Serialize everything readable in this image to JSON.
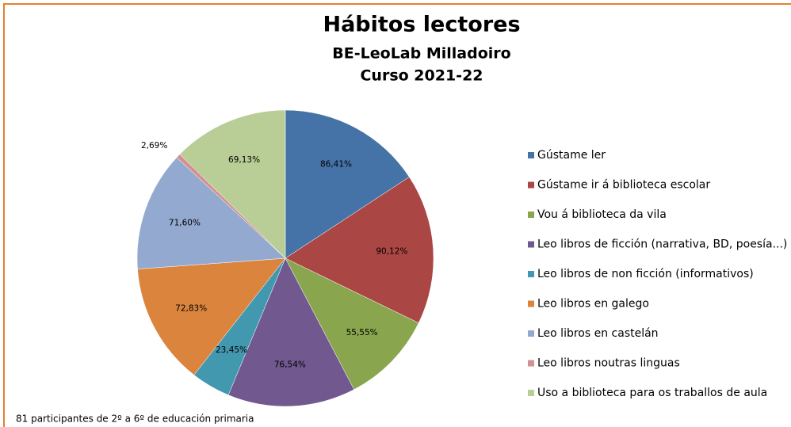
{
  "chart_data": {
    "type": "pie",
    "title": "Hábitos lectores",
    "subtitle": [
      "BE-LeoLab Milladoiro",
      "Curso 2021-22"
    ],
    "footnote": "81 participantes de 2º a 6º de educación primaria",
    "categories": [
      "Gústame ler",
      "Gústame ir á biblioteca escolar",
      "Vou á biblioteca da vila",
      "Leo libros de ficción (narrativa, BD, poesía...)",
      "Leo libros de non ficción (informativos)",
      "Leo libros en galego",
      "Leo libros en castelán",
      "Leo libros noutras linguas",
      "Uso a biblioteca para os traballos de aula"
    ],
    "values": [
      86.41,
      90.12,
      55.55,
      76.54,
      23.45,
      72.83,
      71.6,
      2.69,
      69.13
    ],
    "value_labels": [
      "86,41%",
      "90,12%",
      "55,55%",
      "76,54%",
      "23,45%",
      "72,83%",
      "71,60%",
      "2,69%",
      "69,13%"
    ],
    "colors": [
      "#4572a7",
      "#aa4643",
      "#89a54e",
      "#71588f",
      "#4198af",
      "#db843d",
      "#93a9cf",
      "#d19392",
      "#b9cd96"
    ],
    "legend": "right"
  }
}
